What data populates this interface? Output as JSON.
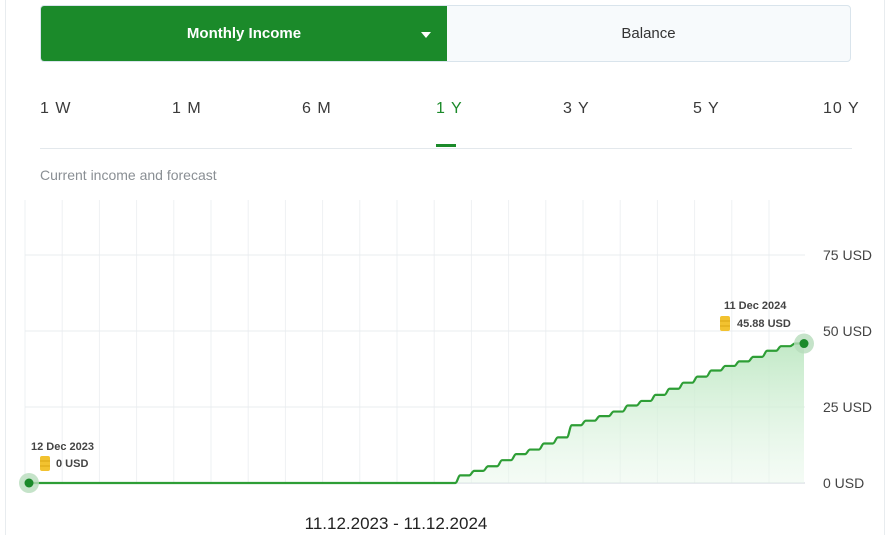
{
  "toggle": {
    "active_label": "Monthly Income",
    "other_label": "Balance"
  },
  "tabs": [
    {
      "label": "1 W"
    },
    {
      "label": "1 M"
    },
    {
      "label": "6 M"
    },
    {
      "label": "1 Y"
    },
    {
      "label": "3 Y"
    },
    {
      "label": "5 Y"
    },
    {
      "label": "10 Y"
    }
  ],
  "active_tab": "1 Y",
  "subtitle": "Current income and forecast",
  "date_range": "11.12.2023 - 11.12.2024",
  "colors": {
    "accent": "#1b8a2a",
    "line": "#2e9e36",
    "fill": "#d6f2d9",
    "coin": "#f2c230"
  },
  "chart_data": {
    "type": "area",
    "xlabel": "",
    "ylabel": "",
    "y_ticks": [
      "0 USD",
      "25 USD",
      "50 USD",
      "75 USD"
    ],
    "ylim": [
      0,
      90
    ],
    "grid": true,
    "start": {
      "date": "12 Dec 2023",
      "value": 0,
      "value_label": "0 USD"
    },
    "end": {
      "date": "11 Dec 2024",
      "value": 45.88,
      "value_label": "45.88 USD"
    },
    "x_dates": [
      "12 Dec 2023",
      "11 Dec 2024"
    ],
    "step_series": {
      "flat_until_fraction": 0.55,
      "values": [
        0,
        2.5,
        4,
        5.5,
        7.5,
        9.5,
        11,
        13,
        15,
        19,
        20.5,
        22,
        23.5,
        25.5,
        27,
        29,
        31,
        33,
        35,
        37,
        38.5,
        40,
        41.5,
        43.5,
        45,
        45.88
      ]
    }
  }
}
